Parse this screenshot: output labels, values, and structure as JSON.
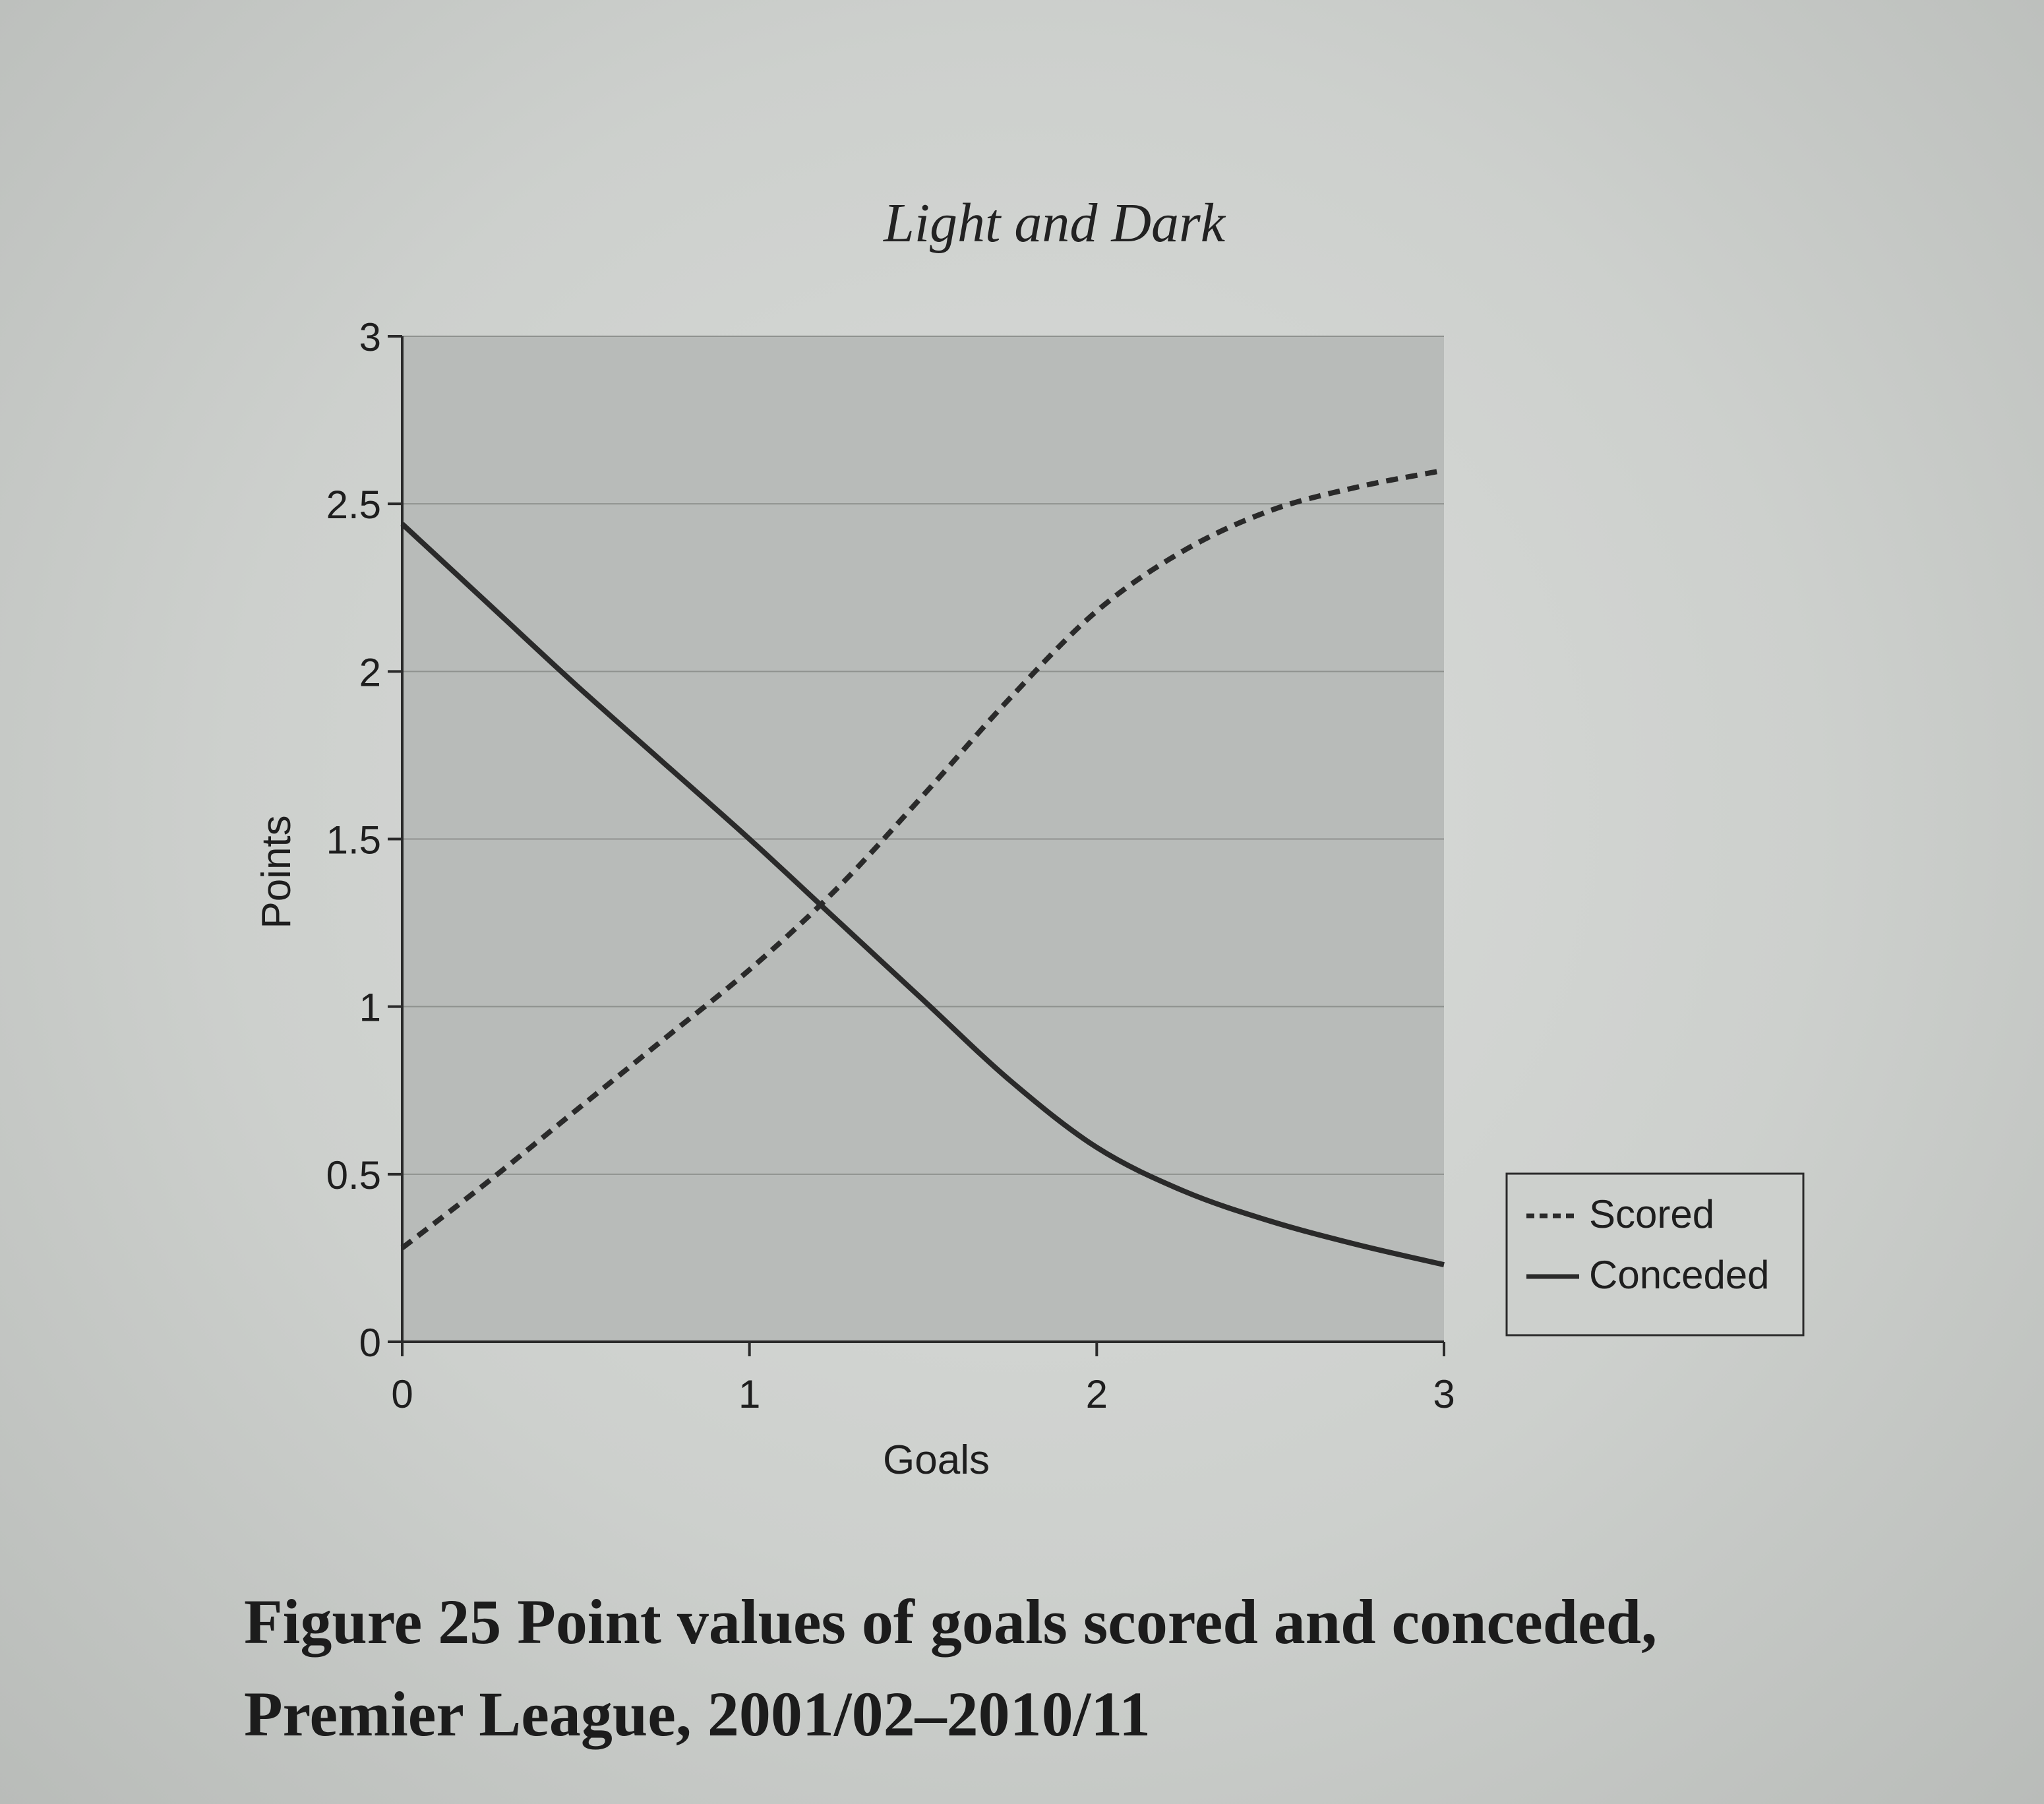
{
  "running_head": "Light and Dark",
  "caption": {
    "line1": "Figure 25 Point values of goals scored and conceded,",
    "line2": "Premier League, 2001/02–2010/11"
  },
  "colors": {
    "plot_background": "#b8bbb9",
    "line": "#2a2a2a",
    "text": "#1e1e1e"
  },
  "chart_data": {
    "type": "line",
    "title": "",
    "xlabel": "Goals",
    "ylabel": "Points",
    "xlim": [
      0,
      3
    ],
    "ylim": [
      0,
      3
    ],
    "x_ticks": [
      "0",
      "1",
      "2",
      "3"
    ],
    "y_ticks": [
      "0",
      "0.5",
      "1",
      "1.5",
      "2",
      "2.5",
      "3"
    ],
    "grid": "horizontal",
    "legend_position": "right",
    "series": [
      {
        "name": "Scored",
        "style": "dashed",
        "x": [
          0,
          0.25,
          0.5,
          0.75,
          1.0,
          1.25,
          1.5,
          1.75,
          2.0,
          2.25,
          2.5,
          2.75,
          3.0
        ],
        "y": [
          0.28,
          0.48,
          0.69,
          0.9,
          1.11,
          1.35,
          1.63,
          1.92,
          2.18,
          2.36,
          2.48,
          2.55,
          2.6
        ]
      },
      {
        "name": "Conceded",
        "style": "solid",
        "x": [
          0,
          0.25,
          0.5,
          0.75,
          1.0,
          1.25,
          1.5,
          1.75,
          2.0,
          2.25,
          2.5,
          2.75,
          3.0
        ],
        "y": [
          2.44,
          2.2,
          1.96,
          1.73,
          1.5,
          1.26,
          1.02,
          0.78,
          0.58,
          0.45,
          0.36,
          0.29,
          0.23
        ]
      }
    ]
  }
}
